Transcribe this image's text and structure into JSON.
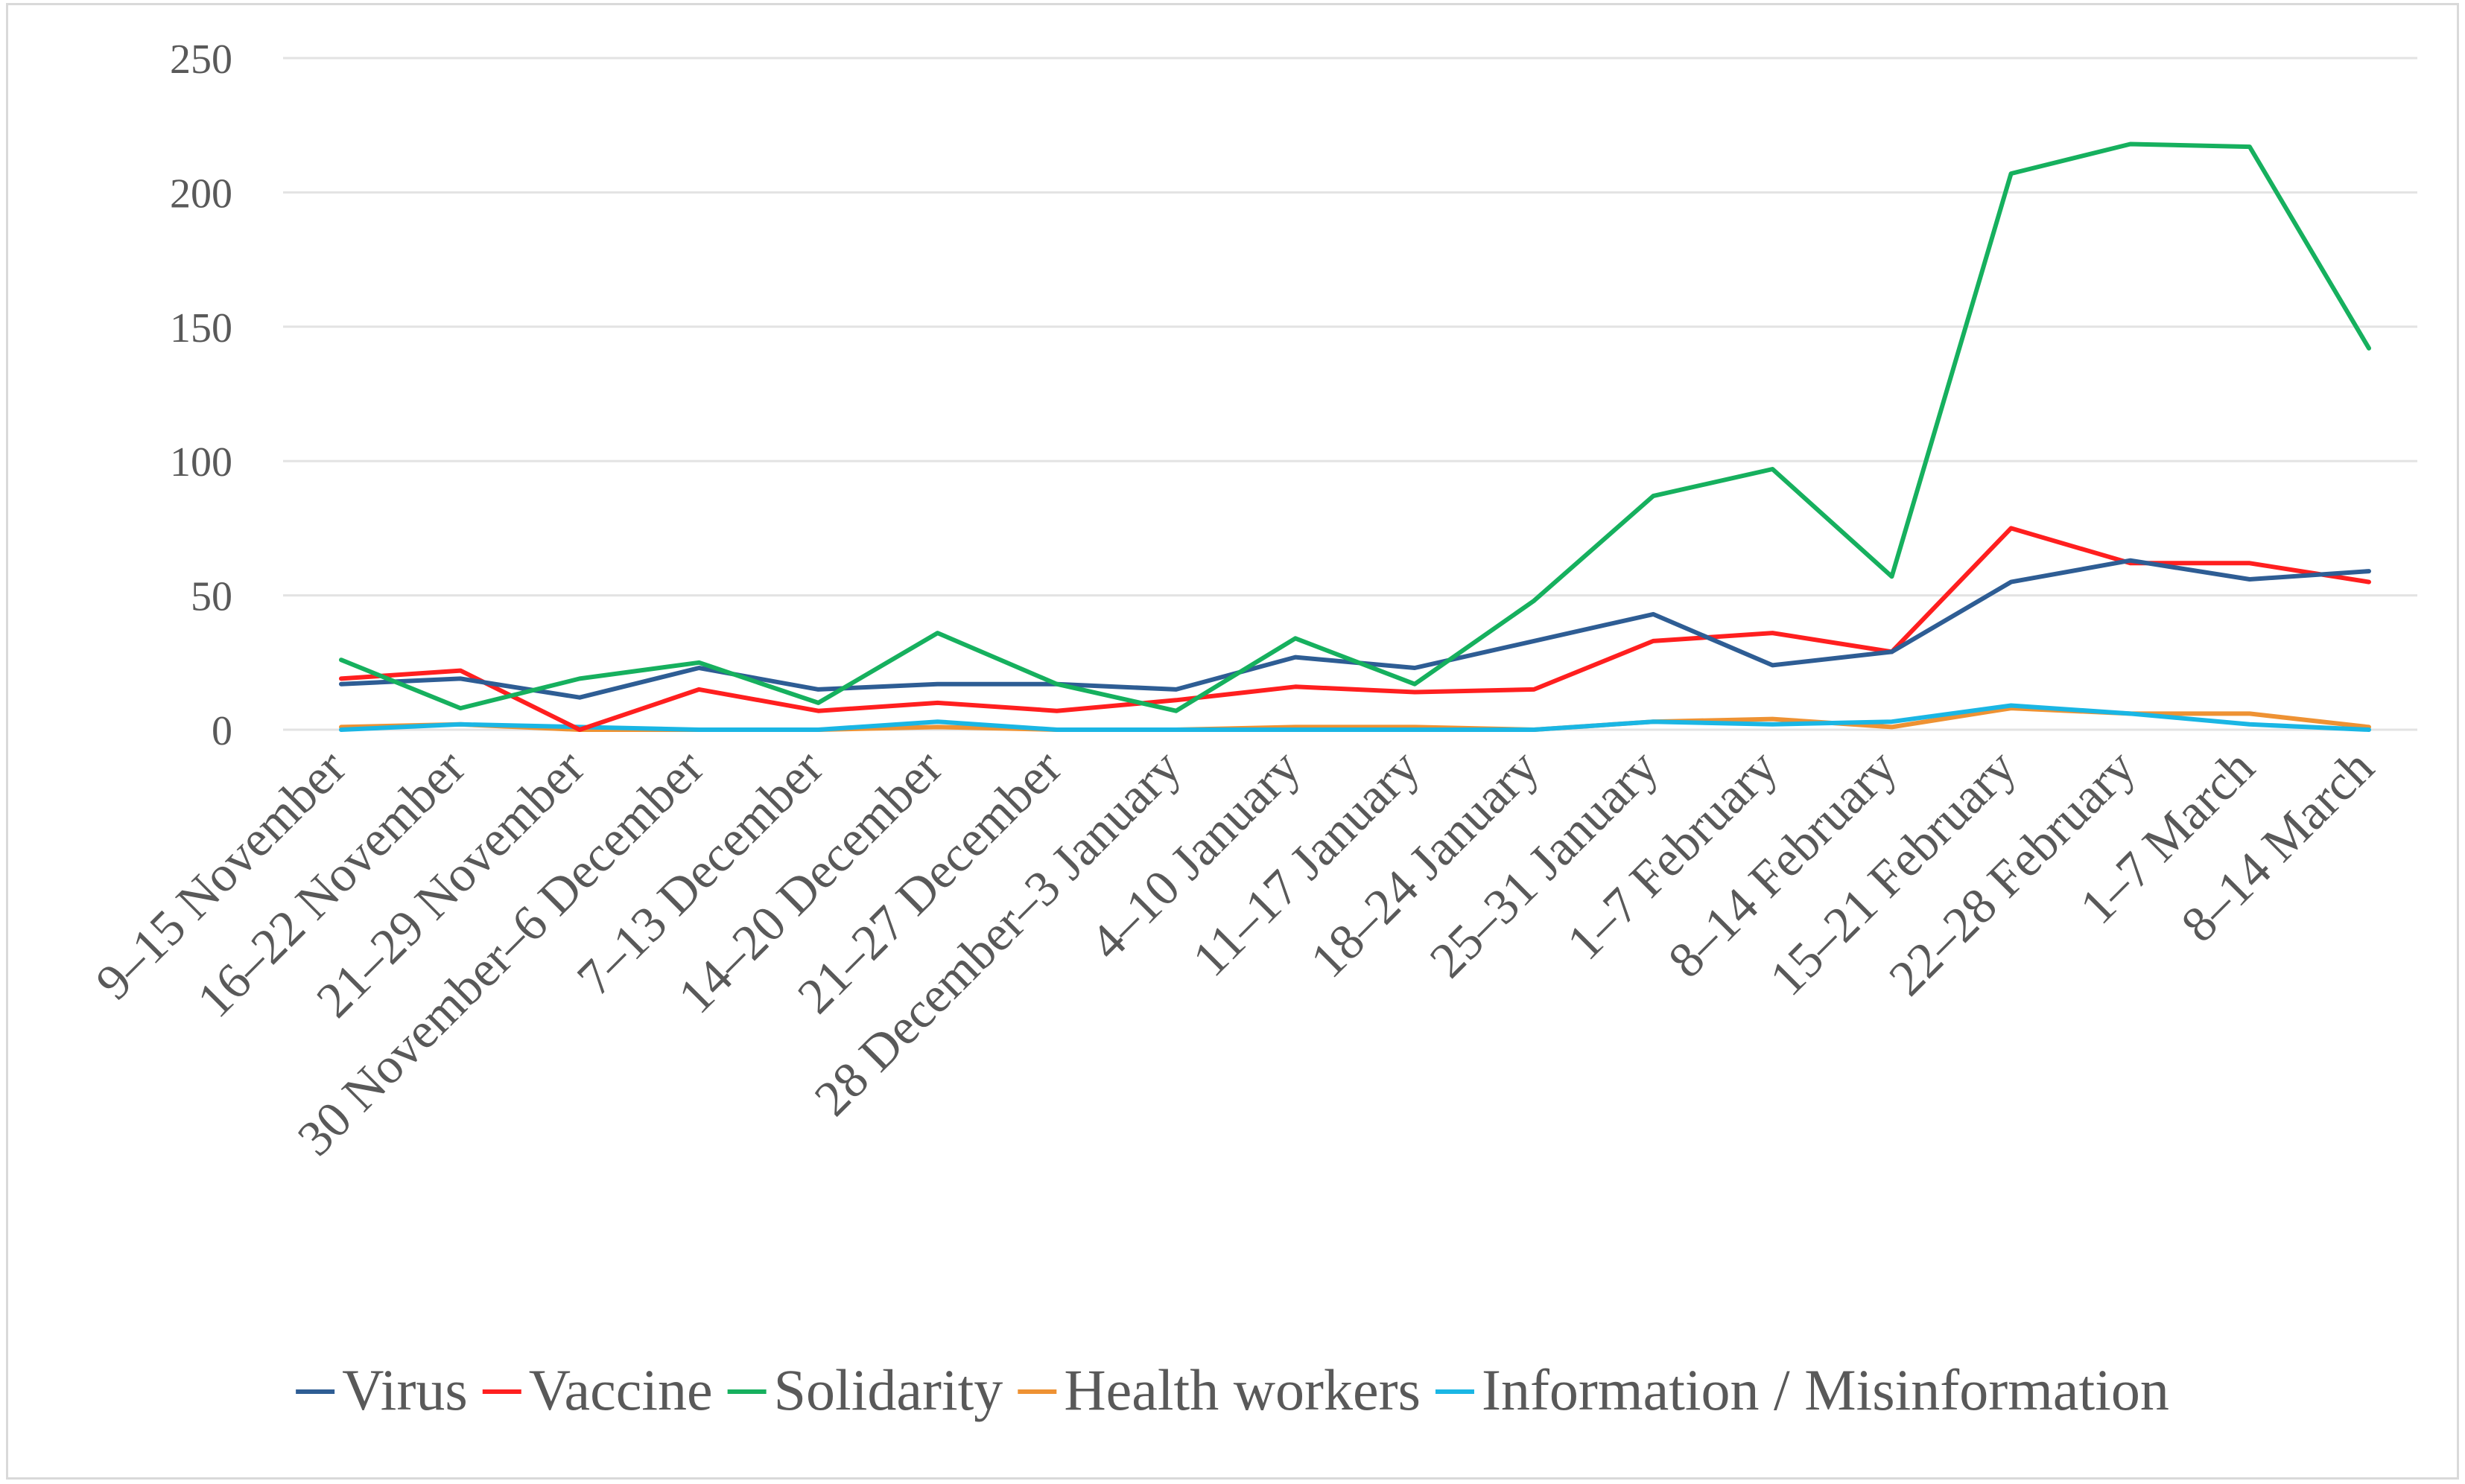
{
  "chart_data": {
    "type": "line",
    "title": "",
    "xlabel": "",
    "ylabel": "",
    "ylim": [
      0,
      250
    ],
    "yticks": [
      0,
      50,
      100,
      150,
      200,
      250
    ],
    "grid": true,
    "legend_position": "bottom",
    "categories": [
      "9–15 November",
      "16–22 November",
      "21–29 November",
      "30 November–6 December",
      "7–13 December",
      "14–20 December",
      "21–27 December",
      "28 December–3 January",
      "4–10 January",
      "11–17 January",
      "18–24 January",
      "25–31 January",
      "1–7 February",
      "8–14 February",
      "15–21 February",
      "22–28 February",
      "1–7 March",
      "8–14 March"
    ],
    "series": [
      {
        "name": "Virus",
        "color": "#2e5d94",
        "values": [
          17,
          19,
          12,
          23,
          15,
          17,
          17,
          15,
          27,
          23,
          33,
          43,
          24,
          29,
          55,
          63,
          56,
          59
        ]
      },
      {
        "name": "Vaccine",
        "color": "#ff1f1f",
        "values": [
          19,
          22,
          0,
          15,
          7,
          10,
          7,
          11,
          16,
          14,
          15,
          33,
          36,
          29,
          75,
          62,
          62,
          55
        ]
      },
      {
        "name": "Solidarity",
        "color": "#16b05e",
        "values": [
          26,
          8,
          19,
          25,
          10,
          36,
          17,
          7,
          34,
          17,
          48,
          87,
          97,
          57,
          207,
          218,
          217,
          142
        ]
      },
      {
        "name": "Health workers",
        "color": "#ee9233",
        "values": [
          1,
          2,
          0,
          0,
          0,
          1,
          0,
          0,
          1,
          1,
          0,
          3,
          4,
          1,
          8,
          6,
          6,
          1
        ]
      },
      {
        "name": "Information / Misinformation",
        "color": "#1ab6e4",
        "values": [
          0,
          2,
          1,
          0,
          0,
          3,
          0,
          0,
          0,
          0,
          0,
          3,
          2,
          3,
          9,
          6,
          2,
          0
        ]
      }
    ]
  }
}
